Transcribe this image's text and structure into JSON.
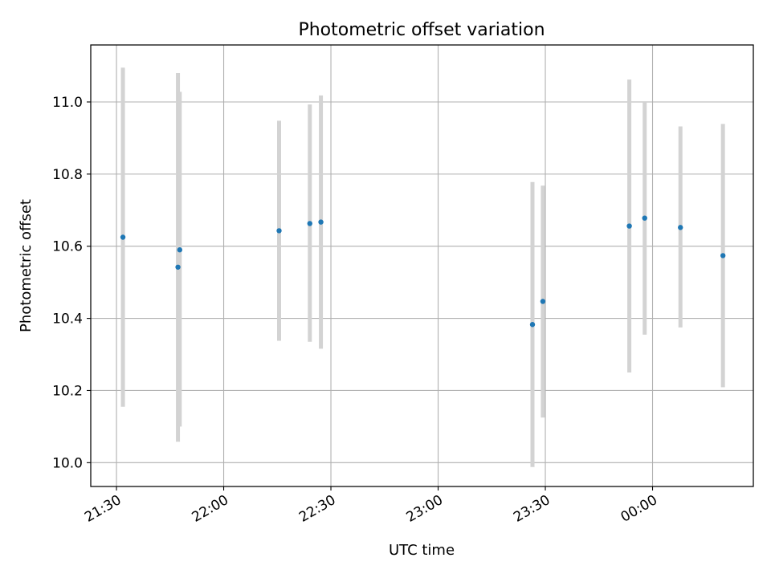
{
  "chart_data": {
    "type": "scatter",
    "title": "Photometric offset variation",
    "xlabel": "UTC time",
    "ylabel": "Photometric offset",
    "x_ticks": [
      "21:30",
      "22:00",
      "22:30",
      "23:00",
      "23:30",
      "00:00"
    ],
    "y_ticks": [
      "10.0",
      "10.2",
      "10.4",
      "10.6",
      "10.8",
      "11.0"
    ],
    "xlim": [
      "21:22:48",
      "00:28:12"
    ],
    "ylim": [
      9.934,
      11.158
    ],
    "grid": true,
    "errorbar_color": "#d3d3d3",
    "point_color": "#1f77b4",
    "points": [
      {
        "x": "21:31:48",
        "y": 10.625,
        "ymin": 10.155,
        "ymax": 11.095
      },
      {
        "x": "21:47:12",
        "y": 10.542,
        "ymin": 10.058,
        "ymax": 11.08
      },
      {
        "x": "21:47:42",
        "y": 10.59,
        "ymin": 10.1,
        "ymax": 11.028
      },
      {
        "x": "22:15:30",
        "y": 10.643,
        "ymin": 10.338,
        "ymax": 10.948
      },
      {
        "x": "22:24:06",
        "y": 10.663,
        "ymin": 10.335,
        "ymax": 10.993
      },
      {
        "x": "22:27:12",
        "y": 10.667,
        "ymin": 10.316,
        "ymax": 11.018
      },
      {
        "x": "23:26:24",
        "y": 10.383,
        "ymin": 9.988,
        "ymax": 10.778
      },
      {
        "x": "23:29:18",
        "y": 10.447,
        "ymin": 10.125,
        "ymax": 10.768
      },
      {
        "x": "23:53:30",
        "y": 10.656,
        "ymin": 10.25,
        "ymax": 11.062
      },
      {
        "x": "23:57:48",
        "y": 10.678,
        "ymin": 10.355,
        "ymax": 10.998
      },
      {
        "x": "00:07:48",
        "y": 10.652,
        "ymin": 10.375,
        "ymax": 10.932
      },
      {
        "x": "00:19:42",
        "y": 10.574,
        "ymin": 10.209,
        "ymax": 10.939
      }
    ]
  }
}
